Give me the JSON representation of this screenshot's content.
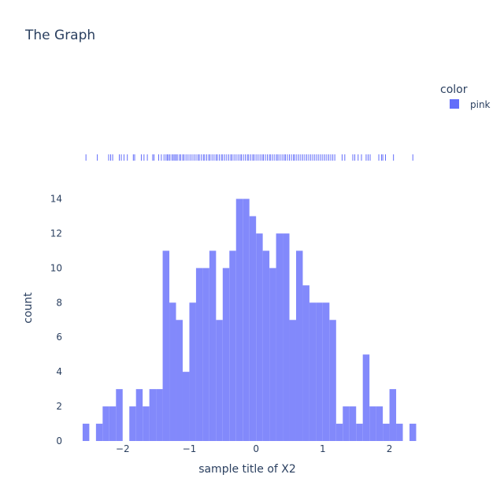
{
  "chart_data": {
    "type": "histogram",
    "title": "The Graph",
    "xlabel": "sample title of X2",
    "ylabel": "count",
    "xlim": [
      -2.67,
      2.43
    ],
    "ylim": [
      0,
      15.8
    ],
    "bin_width": 0.1,
    "bin_start": -2.6,
    "counts": [
      1,
      0,
      1,
      2,
      2,
      3,
      0,
      2,
      3,
      2,
      3,
      3,
      11,
      8,
      7,
      4,
      8,
      10,
      10,
      11,
      7,
      10,
      11,
      14,
      14,
      13,
      12,
      11,
      10,
      12,
      12,
      7,
      11,
      9,
      8,
      8,
      8,
      7,
      1,
      2,
      2,
      1,
      5,
      2,
      2,
      1,
      3,
      1,
      0,
      1
    ],
    "x_ticks": [
      -2,
      -1,
      0,
      1,
      2
    ],
    "x_tick_labels": [
      "−2",
      "−1",
      "0",
      "1",
      "2"
    ],
    "y_ticks": [
      0,
      2,
      4,
      6,
      8,
      10,
      12,
      14
    ],
    "y_tick_labels": [
      "0",
      "2",
      "4",
      "6",
      "8",
      "10",
      "12",
      "14"
    ],
    "rug": [
      -2.55,
      -2.38,
      -2.21,
      -2.18,
      -2.15,
      -2.05,
      -2.02,
      -1.98,
      -1.93,
      -1.84,
      -1.82,
      -1.72,
      -1.68,
      -1.63,
      -1.55,
      -1.53,
      -1.46,
      -1.42,
      -1.38,
      -1.35,
      -1.33,
      -1.31,
      -1.29,
      -1.26,
      -1.24,
      -1.22,
      -1.2,
      -1.18,
      -1.15,
      -1.13,
      -1.1,
      -1.08,
      -1.05,
      -1.02,
      -0.99,
      -0.96,
      -0.93,
      -0.9,
      -0.87,
      -0.85,
      -0.82,
      -0.79,
      -0.77,
      -0.74,
      -0.71,
      -0.69,
      -0.66,
      -0.63,
      -0.6,
      -0.58,
      -0.55,
      -0.52,
      -0.5,
      -0.47,
      -0.44,
      -0.41,
      -0.38,
      -0.36,
      -0.33,
      -0.3,
      -0.27,
      -0.24,
      -0.22,
      -0.19,
      -0.16,
      -0.13,
      -0.11,
      -0.08,
      -0.05,
      -0.03,
      0.0,
      0.03,
      0.06,
      0.09,
      0.11,
      0.14,
      0.17,
      0.2,
      0.22,
      0.25,
      0.28,
      0.31,
      0.33,
      0.36,
      0.39,
      0.42,
      0.44,
      0.47,
      0.5,
      0.53,
      0.56,
      0.58,
      0.61,
      0.64,
      0.67,
      0.7,
      0.73,
      0.76,
      0.79,
      0.82,
      0.85,
      0.88,
      0.91,
      0.94,
      0.97,
      1.0,
      1.03,
      1.06,
      1.09,
      1.12,
      1.15,
      1.18,
      1.29,
      1.33,
      1.45,
      1.48,
      1.53,
      1.58,
      1.65,
      1.68,
      1.71,
      1.84,
      1.88,
      1.9,
      1.94,
      2.06,
      2.35
    ],
    "series": [
      {
        "name": "pink",
        "color": "#636efa"
      }
    ],
    "legend": {
      "title": "color",
      "placement": "top-right"
    },
    "bar_color": "#8289fb",
    "grid": false
  }
}
